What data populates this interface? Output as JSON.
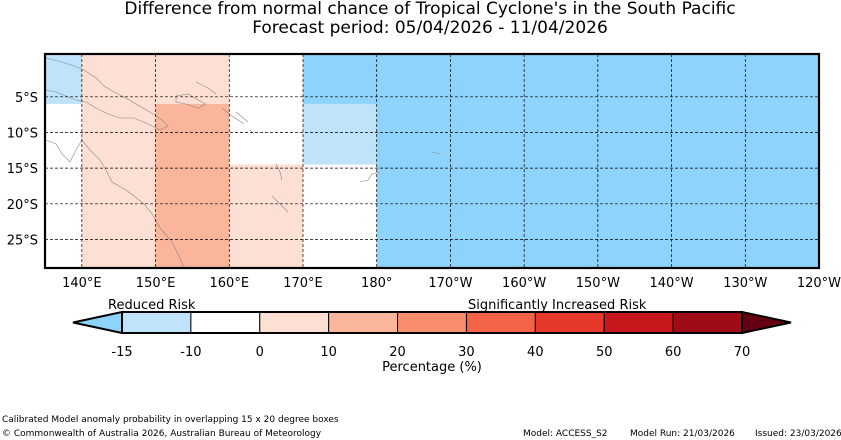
{
  "title": {
    "line1": "Difference from normal chance of Tropical Cyclone's in the South Pacific",
    "line2": "Forecast period: 05/04/2026 - 11/04/2026"
  },
  "map": {
    "lon_range": [
      135,
      240
    ],
    "lat_range": [
      -29,
      1
    ],
    "lat_labels": [
      {
        "lat": -5,
        "text": "5°S"
      },
      {
        "lat": -10,
        "text": "10°S"
      },
      {
        "lat": -15,
        "text": "15°S"
      },
      {
        "lat": -20,
        "text": "20°S"
      },
      {
        "lat": -25,
        "text": "25°S"
      }
    ],
    "lon_labels": [
      {
        "lon": 140,
        "text": "140°E"
      },
      {
        "lon": 150,
        "text": "150°E"
      },
      {
        "lon": 160,
        "text": "160°E"
      },
      {
        "lon": 170,
        "text": "170°E"
      },
      {
        "lon": 180,
        "text": "180°"
      },
      {
        "lon": 190,
        "text": "170°W"
      },
      {
        "lon": 200,
        "text": "160°W"
      },
      {
        "lon": 210,
        "text": "150°W"
      },
      {
        "lon": 220,
        "text": "140°W"
      },
      {
        "lon": 230,
        "text": "130°W"
      },
      {
        "lon": 240,
        "text": "120°W"
      }
    ],
    "anomaly_cells": [
      {
        "lon0": 135,
        "lon1": 140,
        "lat0": -6,
        "lat1": 1,
        "color": "#bfe3fa"
      },
      {
        "lon0": 140,
        "lon1": 150,
        "lat0": -29,
        "lat1": 1,
        "color": "#fedfd3"
      },
      {
        "lon0": 150,
        "lon1": 160,
        "lat0": -6,
        "lat1": 1,
        "color": "#fedfd3"
      },
      {
        "lon0": 150,
        "lon1": 160,
        "lat0": -29,
        "lat1": -6,
        "color": "#fbb59b"
      },
      {
        "lon0": 160,
        "lon1": 170,
        "lat0": -29,
        "lat1": -14.5,
        "color": "#fedfd3"
      },
      {
        "lon0": 170,
        "lon1": 240,
        "lat0": -6,
        "lat1": 1,
        "color": "#8dd3fb"
      },
      {
        "lon0": 170,
        "lon1": 180,
        "lat0": -14.5,
        "lat1": -6,
        "color": "#bfe3fa"
      },
      {
        "lon0": 180,
        "lon1": 240,
        "lat0": -29,
        "lat1": -6,
        "color": "#8dd3fb"
      }
    ]
  },
  "legend": {
    "reduced_label": "Reduced Risk",
    "increased_label": "Significantly Increased Risk",
    "axis_label": "Percentage (%)",
    "ticks": [
      "-15",
      "-10",
      "0",
      "10",
      "20",
      "30",
      "40",
      "50",
      "60",
      "70"
    ],
    "low_extend_color": "#8dd3fb",
    "high_extend_color": "#660010",
    "bins": [
      {
        "from": "-15",
        "to": "-10",
        "color": "#bfe3fa"
      },
      {
        "from": "-10",
        "to": "0",
        "color": "#ffffff"
      },
      {
        "from": "0",
        "to": "10",
        "color": "#fedfd3"
      },
      {
        "from": "10",
        "to": "20",
        "color": "#fbb59b"
      },
      {
        "from": "20",
        "to": "30",
        "color": "#f98d6d"
      },
      {
        "from": "30",
        "to": "40",
        "color": "#f46345"
      },
      {
        "from": "40",
        "to": "50",
        "color": "#e6392a"
      },
      {
        "from": "50",
        "to": "60",
        "color": "#c7171c"
      },
      {
        "from": "60",
        "to": "70",
        "color": "#9e0d16"
      }
    ]
  },
  "footer": {
    "method": "Calibrated Model anomaly probability in overlapping 15 x 20 degree boxes",
    "copyright": "© Commonwealth of Australia 2026, Australian Bureau of Meteorology",
    "model": "Model: ACCESS_S2",
    "model_run": "Model Run: 21/03/2026",
    "issued": "Issued: 23/03/2026"
  }
}
